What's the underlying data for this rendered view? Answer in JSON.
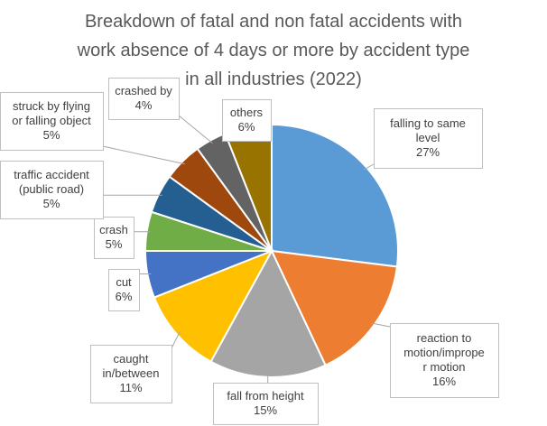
{
  "chart_data": {
    "type": "pie",
    "title": [
      "Breakdown of fatal and non fatal accidents with",
      "work absence of 4 days or more by accident type",
      "in all industries (2022)"
    ],
    "series": [
      {
        "values": [
          27,
          16,
          15,
          11,
          6,
          5,
          5,
          5,
          4,
          6
        ],
        "categories": [
          "falling to same level",
          "reaction to motion/improper motion",
          "fall from height",
          "caught in/between",
          "cut",
          "crash",
          "traffic accident (public road)",
          "struck by flying or falling object",
          "crashed by",
          "others"
        ]
      }
    ],
    "slice_colors": [
      "#5b9bd5",
      "#ed7d31",
      "#a5a5a5",
      "#ffc000",
      "#4472c4",
      "#70ad47",
      "#255e91",
      "#9e480e",
      "#636363",
      "#997300"
    ],
    "data_labels": [
      {
        "text": [
          "falling to same",
          "level"
        ],
        "pct": "27%"
      },
      {
        "text": [
          "reaction to",
          "motion/imprope",
          "r motion"
        ],
        "pct": "16%"
      },
      {
        "text": [
          "fall from height"
        ],
        "pct": "15%"
      },
      {
        "text": [
          "caught",
          "in/between"
        ],
        "pct": "11%"
      },
      {
        "text": [
          "cut"
        ],
        "pct": "6%"
      },
      {
        "text": [
          "crash"
        ],
        "pct": "5%"
      },
      {
        "text": [
          "traffic accident",
          "(public road)"
        ],
        "pct": "5%"
      },
      {
        "text": [
          "struck by flying",
          "or falling object"
        ],
        "pct": "5%"
      },
      {
        "text": [
          "crashed by"
        ],
        "pct": "4%"
      },
      {
        "text": [
          "others"
        ],
        "pct": "6%"
      }
    ],
    "legend": "none"
  }
}
